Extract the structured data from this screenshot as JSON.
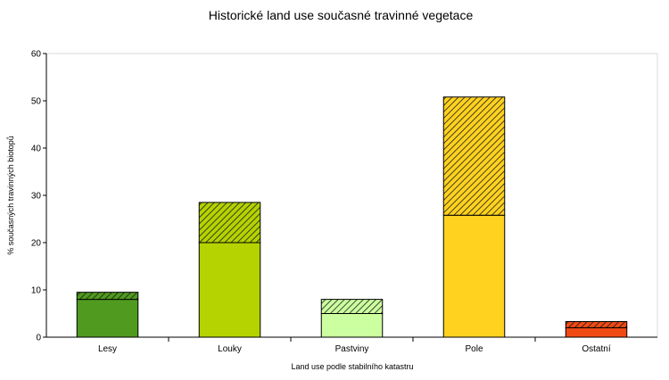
{
  "chart_data": {
    "type": "bar",
    "stacked": true,
    "title": "Historické land use současné travinné vegetace",
    "xlabel": "Land use podle stabilního katastru",
    "ylabel": "% současných travinných biotopů",
    "ylim": [
      0,
      60
    ],
    "yticks": [
      0,
      10,
      20,
      30,
      40,
      50,
      60
    ],
    "grid": false,
    "categories": [
      "Lesy",
      "Louky",
      "Pastviny",
      "Pole",
      "Ostatní"
    ],
    "series": [
      {
        "values": [
          8,
          20,
          5,
          25.8,
          2
        ],
        "pattern": "solid"
      },
      {
        "values": [
          1.5,
          8.5,
          3,
          25,
          1.3
        ],
        "pattern": "hatched"
      }
    ],
    "colors": [
      "#4f9a1f",
      "#b4d300",
      "#ccff9f",
      "#ffd21f",
      "#f04a14"
    ]
  }
}
